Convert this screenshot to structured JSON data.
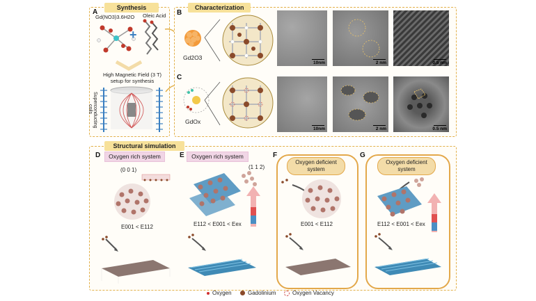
{
  "synthesis": {
    "title": "Synthesis",
    "panel_letter": "A",
    "precursor_label": "Gd(NO3)3.6H2O",
    "oleic_label": "Oleic Acid",
    "field_label": "High Magnetic Field (3 T) setup for synthesis",
    "coils_label": "Superconducting coils"
  },
  "characterization": {
    "title": "Characterization",
    "panel_b_letter": "B",
    "panel_c_letter": "C",
    "gd2o3_label": "Gd2O3",
    "gdox_label": "GdOx",
    "scale_b": [
      "10nm",
      "2 nm",
      "0.5 nm"
    ],
    "scale_c": [
      "10nm",
      "2 nm",
      "0.5 nm"
    ]
  },
  "simulation": {
    "title": "Structural simulation",
    "panels": [
      {
        "letter": "D",
        "header": "Oxygen rich system",
        "direction": "(0 0 1)",
        "energy": "E001 < E112"
      },
      {
        "letter": "E",
        "header": "Oxygen rich system",
        "direction": "(1 1 2)",
        "energy": "E112 < E001 < Eex"
      },
      {
        "letter": "F",
        "header": "Oxygen deficient system",
        "direction": "",
        "energy": "E001 < E112"
      },
      {
        "letter": "G",
        "header": "Oxygen deficient system",
        "direction": "",
        "energy": "E112 < E001 < Eex"
      }
    ]
  },
  "legend": {
    "oxygen": "Oxygen",
    "gadolinium": "Gadolinium",
    "vacancy": "Oxygen Vacancy"
  },
  "colors": {
    "dash": "#e2b04a",
    "section_title": "#f7e19a",
    "pink_header": "#f1d6e6",
    "gadolinium": "#8a4a2a",
    "oxygen": "#d03030",
    "vacancy": "#f3b7a8",
    "substrate_brown": "#8b7670",
    "substrate_blue": "#3f8ab5"
  }
}
